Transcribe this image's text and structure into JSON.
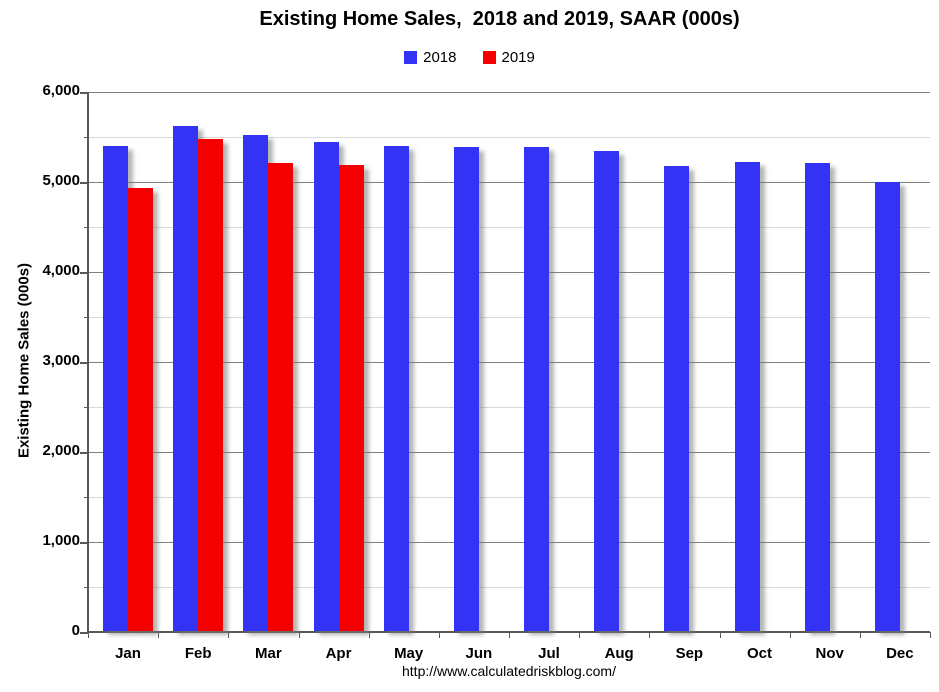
{
  "chart_data": {
    "type": "bar",
    "title": "Existing Home Sales,  2018 and 2019, SAAR (000s)",
    "ylabel": "Existing Home Sales (000s)",
    "categories": [
      "Jan",
      "Feb",
      "Mar",
      "Apr",
      "May",
      "Jun",
      "Jul",
      "Aug",
      "Sep",
      "Oct",
      "Nov",
      "Dec"
    ],
    "series": [
      {
        "name": "2018",
        "color": "#3333f5",
        "values": [
          5400,
          5620,
          5520,
          5450,
          5400,
          5390,
          5390,
          5340,
          5180,
          5220,
          5210,
          5000
        ]
      },
      {
        "name": "2019",
        "color": "#f50000",
        "values": [
          4930,
          5480,
          5210,
          5190,
          null,
          null,
          null,
          null,
          null,
          null,
          null,
          null
        ]
      }
    ],
    "ylim": [
      0,
      6000
    ],
    "ytick_interval": 1000,
    "minor_tick_interval": 500,
    "ytick_labels": [
      "0",
      "1,000",
      "2,000",
      "3,000",
      "4,000",
      "5,000",
      "6,000"
    ],
    "grid": true,
    "legend_position": "top-center"
  },
  "footer_url": "http://www.calculatedriskblog.com/",
  "colors": {
    "series_2018": "#3333f5",
    "series_2019": "#f50000",
    "major_gridline": "#808080",
    "minor_gridline": "#d9d9d9",
    "axis": "#595959",
    "text": "#000000",
    "background": "#ffffff"
  }
}
